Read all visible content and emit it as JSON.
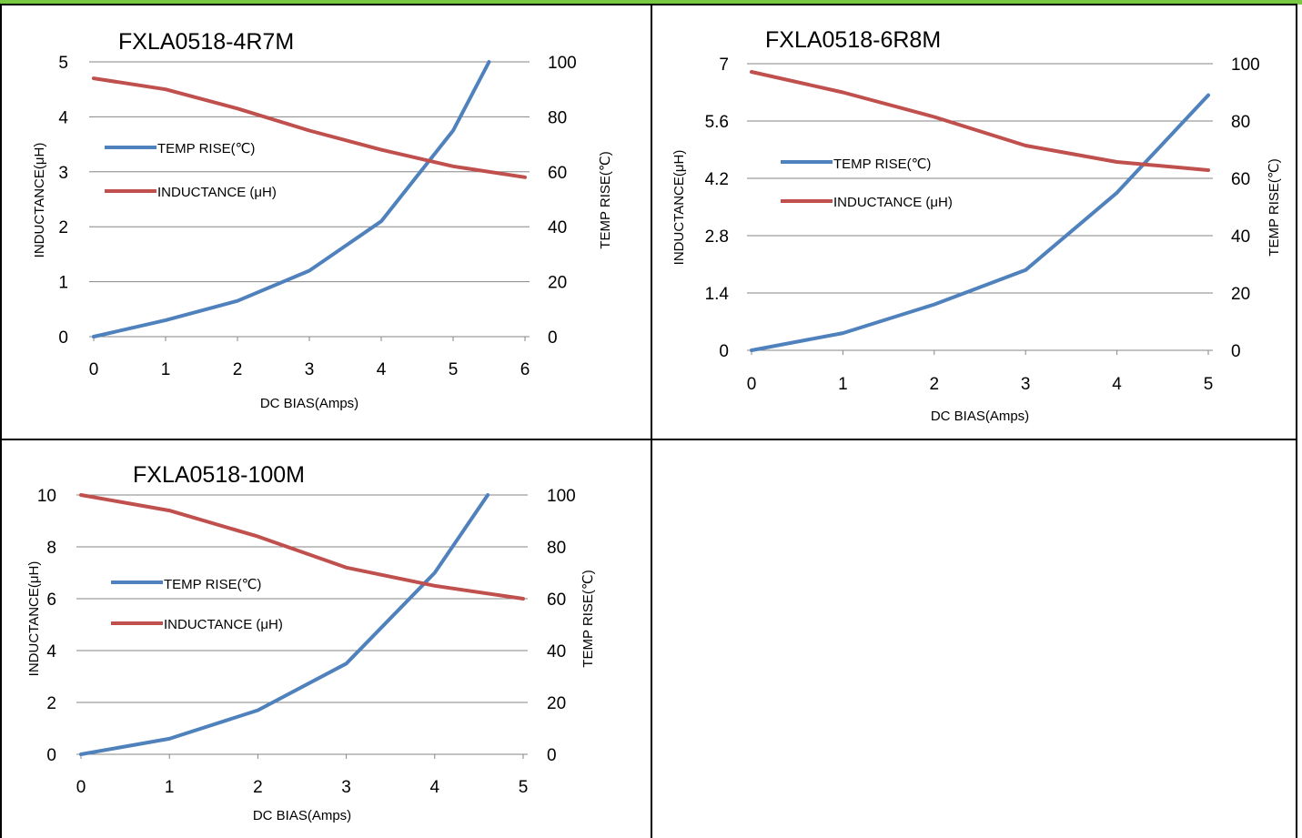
{
  "colors": {
    "top_strip": "#7ac943",
    "temp_line": "#4f81bd",
    "inductance_line": "#c0504d",
    "gridline": "#868686",
    "legend_unit": "#7f6000"
  },
  "chart_data": [
    {
      "type": "line",
      "title": "FXLA0518-4R7M",
      "xlabel": "DC  BIAS(Amps)",
      "ylabel_left": "INDUCTANCE(μH)",
      "ylabel_right": "TEMP RISE(℃)",
      "x_ticks": [
        "0",
        "1",
        "2",
        "3",
        "4",
        "5",
        "6"
      ],
      "y_left_ticks": [
        "0",
        "1",
        "2",
        "3",
        "4",
        "5"
      ],
      "y_right_ticks": [
        "0",
        "20",
        "40",
        "60",
        "80",
        "100"
      ],
      "xlim": [
        0,
        6
      ],
      "ylim_left": [
        0,
        5
      ],
      "ylim_right": [
        0,
        100
      ],
      "grid": "horizontal",
      "legend": "left",
      "series": [
        {
          "name": "TEMP RISE(℃)",
          "axis": "right",
          "x": [
            0,
            1,
            2,
            3,
            4,
            5,
            5.5
          ],
          "y": [
            0,
            6,
            13,
            24,
            42,
            75,
            100
          ]
        },
        {
          "name": "INDUCTANCE (μH)",
          "axis": "left",
          "x": [
            0,
            1,
            2,
            3,
            4,
            5,
            6
          ],
          "y": [
            4.7,
            4.5,
            4.15,
            3.75,
            3.4,
            3.1,
            2.9
          ]
        }
      ]
    },
    {
      "type": "line",
      "title": "FXLA0518-6R8M",
      "xlabel": "DC  BIAS(Amps)",
      "ylabel_left": "INDUCTANCE(μH)",
      "ylabel_right": "TEMP RISE(℃)",
      "x_ticks": [
        "0",
        "1",
        "2",
        "3",
        "4",
        "5"
      ],
      "y_left_ticks": [
        "0",
        "1.4",
        "2.8",
        "4.2",
        "5.6",
        "7"
      ],
      "y_right_ticks": [
        "0",
        "20",
        "40",
        "60",
        "80",
        "100"
      ],
      "xlim": [
        0,
        5
      ],
      "ylim_left": [
        0,
        7
      ],
      "ylim_right": [
        0,
        100
      ],
      "grid": "horizontal",
      "legend": "left",
      "series": [
        {
          "name": "TEMP RISE(℃)",
          "axis": "right",
          "x": [
            0,
            1,
            2,
            3,
            4,
            5
          ],
          "y": [
            0,
            6,
            16,
            28,
            55,
            89
          ]
        },
        {
          "name": "INDUCTANCE (μH)",
          "axis": "left",
          "x": [
            0,
            1,
            2,
            3,
            4,
            5
          ],
          "y": [
            6.8,
            6.3,
            5.7,
            5.0,
            4.6,
            4.4
          ]
        }
      ]
    },
    {
      "type": "line",
      "title": "FXLA0518-100M",
      "xlabel": "DC  BIAS(Amps)",
      "ylabel_left": "INDUCTANCE(μH)",
      "ylabel_right": "TEMP RISE(℃)",
      "x_ticks": [
        "0",
        "1",
        "2",
        "3",
        "4",
        "5"
      ],
      "y_left_ticks": [
        "0",
        "2",
        "4",
        "6",
        "8",
        "10"
      ],
      "y_right_ticks": [
        "0",
        "20",
        "40",
        "60",
        "80",
        "100"
      ],
      "xlim": [
        0,
        5
      ],
      "ylim_left": [
        0,
        10
      ],
      "ylim_right": [
        0,
        100
      ],
      "grid": "horizontal",
      "legend": "left",
      "series": [
        {
          "name": "TEMP RISE(℃)",
          "axis": "right",
          "x": [
            0,
            1,
            2,
            3,
            4,
            4.6
          ],
          "y": [
            0,
            6,
            17,
            35,
            70,
            100
          ]
        },
        {
          "name": "INDUCTANCE (μH)",
          "axis": "left",
          "x": [
            0,
            1,
            2,
            3,
            4,
            5
          ],
          "y": [
            10,
            9.4,
            8.4,
            7.2,
            6.5,
            6.0
          ]
        }
      ]
    }
  ]
}
